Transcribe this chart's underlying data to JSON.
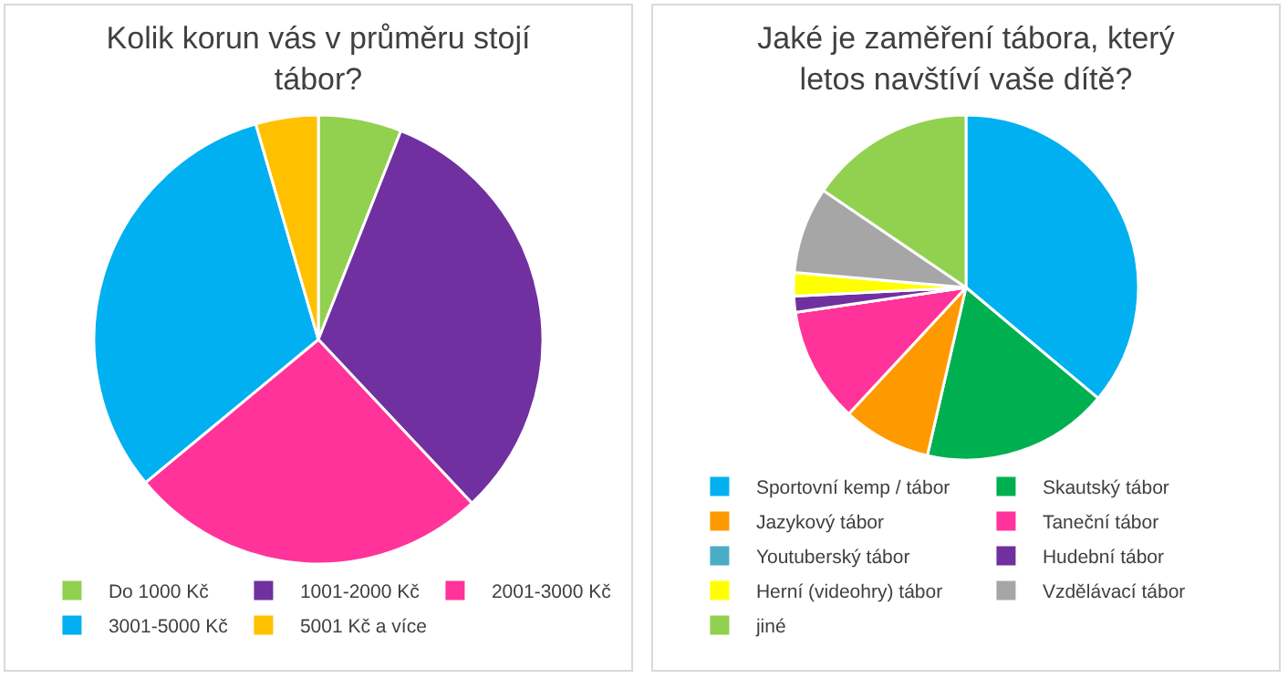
{
  "chart_data": [
    {
      "type": "pie",
      "title": "Kolik korun vás v průměru stojí tábor?",
      "categories": [
        "Do 1000 Kč",
        "1001-2000 Kč",
        "2001-3000 Kč",
        "3001-5000 Kč",
        "5001 Kč a více"
      ],
      "values": [
        6,
        32,
        26,
        31.5,
        4.5
      ],
      "colors": [
        "#92d050",
        "#7030a0",
        "#ff3399",
        "#00b0f0",
        "#ffc000"
      ],
      "legend": "bottom"
    },
    {
      "type": "pie",
      "title": "Jaké je zaměření tábora, který letos navštíví vaše dítě?",
      "categories": [
        "Sportovní kemp / tábor",
        "Skautský tábor",
        "Jazykový tábor",
        "Taneční tábor",
        "Youtuberský tábor",
        "Hudební tábor",
        "Herní (videohry) tábor",
        "Vzdělávací tábor",
        "jiné"
      ],
      "values": [
        36.1,
        17.5,
        8.3,
        10.8,
        0,
        1.5,
        2.2,
        8.1,
        15.5
      ],
      "colors": [
        "#00b0f0",
        "#00b050",
        "#ff9900",
        "#ff3399",
        "#4bacc6",
        "#7030a0",
        "#ffff00",
        "#a6a6a6",
        "#92d050"
      ],
      "legend": "bottom"
    }
  ]
}
